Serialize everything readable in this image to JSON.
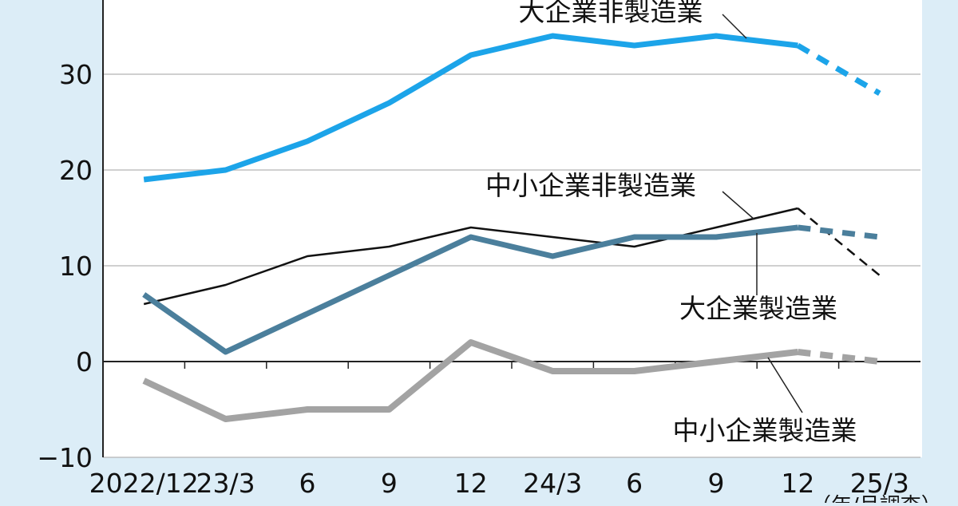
{
  "chart_data": {
    "type": "line",
    "categories": [
      "2022/12",
      "23/3",
      "6",
      "9",
      "12",
      "24/3",
      "6",
      "9",
      "12",
      "25/3"
    ],
    "series": [
      {
        "name": "大企業非製造業",
        "color": "#1ca4e9",
        "values": [
          19,
          20,
          23,
          27,
          32,
          34,
          33,
          34,
          33,
          28
        ]
      },
      {
        "name": "中小企業非製造業",
        "color": "#111111",
        "values": [
          6,
          8,
          11,
          12,
          14,
          13,
          12,
          14,
          16,
          9
        ]
      },
      {
        "name": "大企業製造業",
        "color": "#4b7f9c",
        "values": [
          7,
          1,
          5,
          9,
          13,
          11,
          13,
          13,
          14,
          13
        ]
      },
      {
        "name": "中小企業製造業",
        "color": "#a3a3a3",
        "values": [
          -2,
          -6,
          -5,
          -5,
          2,
          -1,
          -1,
          0,
          1,
          0
        ]
      }
    ],
    "ylim": [
      -10,
      37.75
    ],
    "yticks": [
      {
        "value": -10,
        "label": "−10"
      },
      0,
      10,
      20,
      30
    ],
    "grid": true,
    "note": "（年/月調査）"
  }
}
